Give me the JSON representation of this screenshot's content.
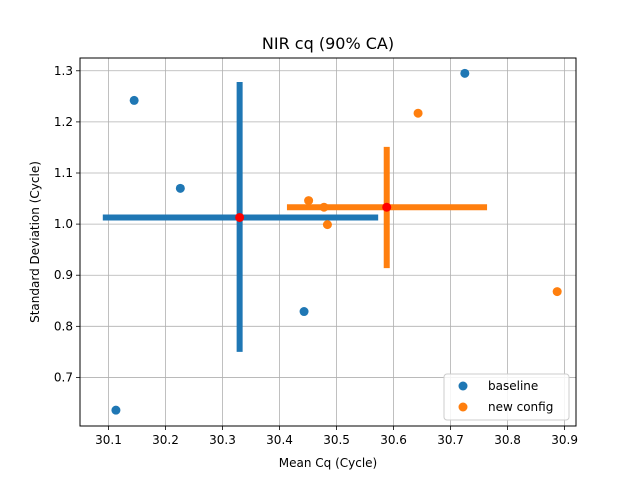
{
  "chart_data": {
    "type": "scatter",
    "title": "NIR cq (90% CA)",
    "xlabel": "Mean Cq (Cycle)",
    "ylabel": "Standard Deviation (Cycle)",
    "xlim": [
      30.05,
      30.92
    ],
    "ylim": [
      0.605,
      1.325
    ],
    "xticks": [
      30.1,
      30.2,
      30.3,
      30.4,
      30.5,
      30.6,
      30.7,
      30.8,
      30.9
    ],
    "xtick_labels": [
      "30.1",
      "30.2",
      "30.3",
      "30.4",
      "30.5",
      "30.6",
      "30.7",
      "30.8",
      "30.9"
    ],
    "yticks": [
      0.7,
      0.8,
      0.9,
      1.0,
      1.1,
      1.2,
      1.3
    ],
    "ytick_labels": [
      "0.7",
      "0.8",
      "0.9",
      "1.0",
      "1.1",
      "1.2",
      "1.3"
    ],
    "grid": true,
    "legend_position": "bottom-right",
    "series": [
      {
        "name": "baseline",
        "color": "#1f77b4",
        "points": [
          {
            "x": 30.113,
            "y": 0.636
          },
          {
            "x": 30.145,
            "y": 1.242
          },
          {
            "x": 30.226,
            "y": 1.07
          },
          {
            "x": 30.443,
            "y": 0.829
          },
          {
            "x": 30.725,
            "y": 1.295
          }
        ],
        "mean": {
          "x": 30.33,
          "y": 1.013
        },
        "x_interval": [
          30.09,
          30.573
        ],
        "y_interval": [
          0.75,
          1.278
        ]
      },
      {
        "name": "new config",
        "color": "#ff7f0e",
        "points": [
          {
            "x": 30.451,
            "y": 1.046
          },
          {
            "x": 30.478,
            "y": 1.033
          },
          {
            "x": 30.484,
            "y": 0.999
          },
          {
            "x": 30.643,
            "y": 1.217
          },
          {
            "x": 30.887,
            "y": 0.868
          }
        ],
        "mean": {
          "x": 30.588,
          "y": 1.033
        },
        "x_interval": [
          30.413,
          30.764
        ],
        "y_interval": [
          0.914,
          1.151
        ]
      }
    ],
    "mean_marker_color": "#ff0000"
  }
}
